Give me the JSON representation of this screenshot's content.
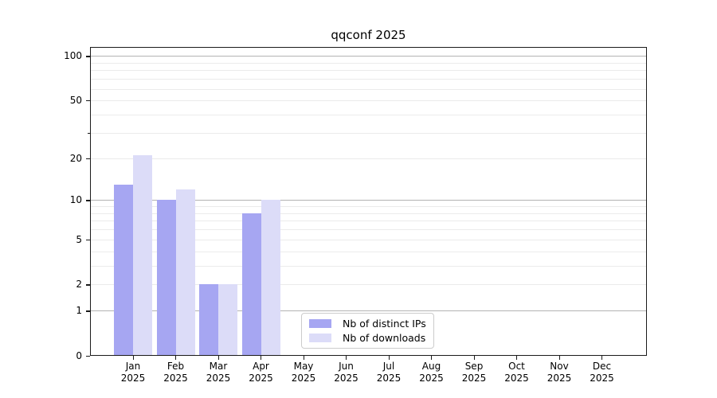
{
  "page": {
    "background": "#ffffff"
  },
  "chart_data": {
    "type": "bar",
    "title": "qqconf 2025",
    "categories": [
      "Jan",
      "Feb",
      "Mar",
      "Apr",
      "May",
      "Jun",
      "Jul",
      "Aug",
      "Sep",
      "Oct",
      "Nov",
      "Dec"
    ],
    "category_year": "2025",
    "series": [
      {
        "name": "Nb of distinct IPs",
        "color": "#a6a6f2",
        "values": [
          13,
          10,
          2,
          8,
          0,
          0,
          0,
          0,
          0,
          0,
          0,
          0
        ]
      },
      {
        "name": "Nb of downloads",
        "color": "#dcdcf8",
        "values": [
          21,
          12,
          2,
          10,
          0,
          0,
          0,
          0,
          0,
          0,
          0,
          0
        ]
      }
    ],
    "y_scale": "log10(v+1)",
    "ylim": [
      0,
      115
    ],
    "y_ticks": [
      {
        "v": 0,
        "label": "0"
      },
      {
        "v": 1,
        "label": "1"
      },
      {
        "v": 2,
        "label": "2"
      },
      {
        "v": 5,
        "label": "5"
      },
      {
        "v": 10,
        "label": "10"
      },
      {
        "v": 20,
        "label": "20"
      },
      {
        "v": 30,
        "label": ""
      },
      {
        "v": 50,
        "label": "50"
      },
      {
        "v": 100,
        "label": "100"
      }
    ],
    "gridlines": {
      "major": [
        1,
        10,
        100
      ],
      "minor": [
        2,
        3,
        4,
        5,
        6,
        7,
        8,
        9,
        20,
        30,
        40,
        50,
        60,
        70,
        80,
        90
      ]
    },
    "grid": "on",
    "legend_position": "inside-bottom-center"
  },
  "colors": {
    "major_grid": "#b3b3b3",
    "minor_grid": "#ebebeb",
    "axis": "#1a1a1a",
    "legend_border": "#cccccc"
  }
}
